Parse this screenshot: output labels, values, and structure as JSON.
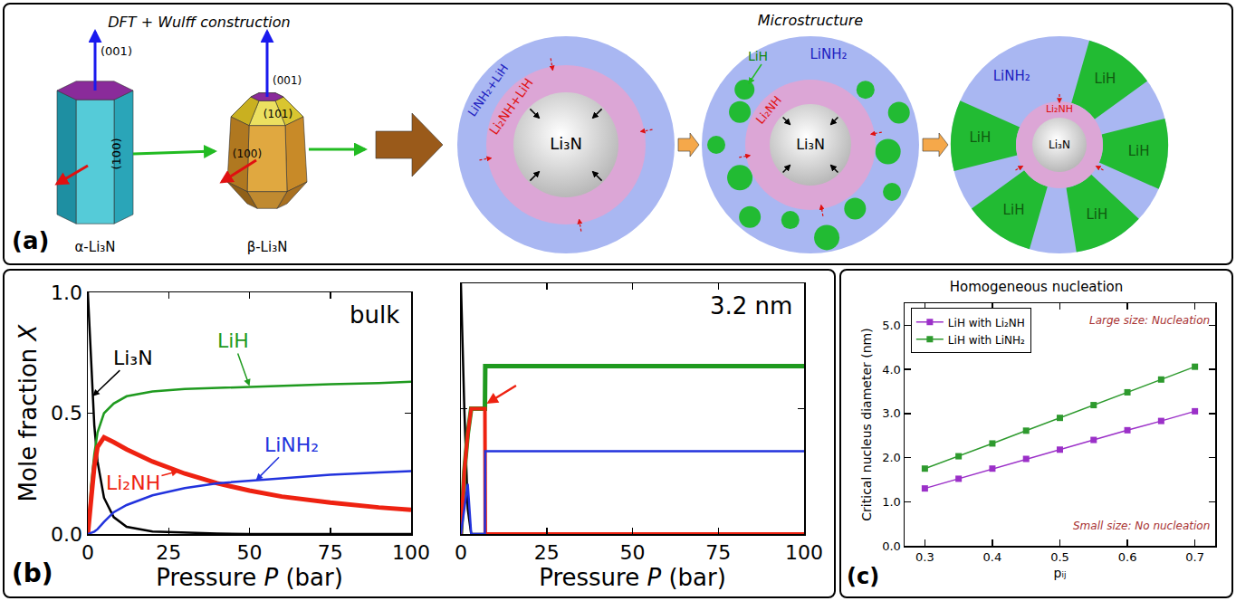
{
  "panel_labels": [
    "(a)",
    "(b)",
    "(c)"
  ],
  "diagram": {
    "wulff": {
      "title": "DFT + Wulff construction",
      "crystals": [
        {
          "name": "α-Li₃N",
          "facets": [
            "(001)",
            "(100)"
          ]
        },
        {
          "name": "β-Li₃N",
          "facets": [
            "(001)",
            "(101)",
            "(100)"
          ]
        }
      ]
    },
    "microstructure": {
      "title": "Microstructure",
      "stages": [
        {
          "core": "Li₃N",
          "middle": "Li₂NH+LiH",
          "shell": "LiNH₂+LiH"
        },
        {
          "core": "Li₃N",
          "middle": "Li₂NH",
          "shell": "LiNH₂",
          "particles": "LiH"
        },
        {
          "core": "Li₃N",
          "middle": "Li₂NH",
          "shell": "LiNH₂",
          "wedges": [
            "LiH",
            "LiH",
            "LiH",
            "LiH",
            "LiH"
          ]
        }
      ]
    }
  },
  "chart_data": [
    {
      "type": "line",
      "annotations": [
        "bulk"
      ],
      "x_label": "Pressure P (bar)",
      "y_label": "Mole fraction X",
      "xlim": [
        0,
        100
      ],
      "xticks": [
        0,
        25,
        50,
        75,
        100
      ],
      "ylim": [
        0,
        1
      ],
      "yticks": [
        {
          "value": 0,
          "label": "0.0"
        },
        {
          "value": 0.5,
          "label": "0.5"
        },
        {
          "value": 1,
          "label": "1.0"
        }
      ],
      "grid": false,
      "x": [
        0,
        1,
        2,
        3,
        5,
        8,
        12,
        20,
        30,
        40,
        50,
        60,
        75,
        90,
        100
      ],
      "series": [
        {
          "name": "Li₃N",
          "color": "#000000",
          "values": [
            1.0,
            0.7,
            0.45,
            0.3,
            0.15,
            0.07,
            0.03,
            0.01,
            0.005,
            0.002,
            0,
            0,
            0,
            0,
            0
          ]
        },
        {
          "name": "LiH",
          "color": "#1f9a1f",
          "values": [
            0,
            0.2,
            0.33,
            0.42,
            0.5,
            0.54,
            0.57,
            0.59,
            0.6,
            0.605,
            0.61,
            0.615,
            0.62,
            0.625,
            0.63
          ]
        },
        {
          "name": "Li₂NH",
          "color": "#ee2211",
          "values": [
            0,
            0.15,
            0.28,
            0.36,
            0.4,
            0.38,
            0.35,
            0.3,
            0.25,
            0.21,
            0.18,
            0.155,
            0.13,
            0.11,
            0.1
          ]
        },
        {
          "name": "LiNH₂",
          "color": "#2233dd",
          "values": [
            0,
            0.005,
            0.01,
            0.02,
            0.05,
            0.09,
            0.12,
            0.16,
            0.19,
            0.21,
            0.22,
            0.23,
            0.245,
            0.255,
            0.26
          ]
        }
      ]
    },
    {
      "type": "line",
      "annotations": [
        "3.2 nm"
      ],
      "x_label": "Pressure P (bar)",
      "xlim": [
        0,
        100
      ],
      "xticks": [
        0,
        25,
        50,
        75,
        100
      ],
      "ylim": [
        0,
        1
      ],
      "yticks": [
        0,
        0.5,
        1
      ],
      "tick_labels": "x",
      "grid": false,
      "x": [
        0,
        1,
        2,
        3,
        5,
        7,
        7.1,
        25,
        50,
        75,
        100
      ],
      "series": [
        {
          "color": "#000000",
          "values": [
            1.0,
            0.5,
            0.1,
            0,
            0,
            0,
            0,
            0,
            0,
            0,
            0
          ]
        },
        {
          "color": "#1f9a1f",
          "values": [
            0,
            0.25,
            0.4,
            0.5,
            0.5,
            0.5,
            0.67,
            0.67,
            0.67,
            0.67,
            0.67
          ]
        },
        {
          "color": "#ee2211",
          "values": [
            0,
            0.25,
            0.4,
            0.5,
            0.5,
            0.5,
            0,
            0,
            0,
            0,
            0
          ]
        },
        {
          "color": "#2233dd",
          "values": [
            0,
            0.1,
            0.2,
            0,
            0,
            0,
            0.33,
            0.33,
            0.33,
            0.33,
            0.33
          ]
        }
      ]
    },
    {
      "type": "line",
      "title": "Homogeneous nucleation",
      "annotations": [
        "Large size: Nucleation",
        "Small size: No nucleation"
      ],
      "x_label": "pᵢⱼ",
      "y_label": "Critical nucleus diameter (nm)",
      "xlim": [
        0.27,
        0.73
      ],
      "xticks": [
        0.3,
        0.4,
        0.5,
        0.6,
        0.7
      ],
      "ylim": [
        0,
        5.5
      ],
      "yticks": [
        {
          "value": 0,
          "label": "0.0"
        },
        {
          "value": 1,
          "label": "1.0"
        },
        {
          "value": 2,
          "label": "2.0"
        },
        {
          "value": 3,
          "label": "3.0"
        },
        {
          "value": 4,
          "label": "4.0"
        },
        {
          "value": 5,
          "label": "5.0"
        }
      ],
      "grid": false,
      "legend": "top left",
      "marker": "square",
      "x": [
        0.3,
        0.35,
        0.4,
        0.45,
        0.5,
        0.55,
        0.6,
        0.65,
        0.7
      ],
      "series": [
        {
          "name": "LiH with Li₂NH",
          "color": "#9b30c8",
          "values": [
            1.3,
            1.52,
            1.75,
            1.97,
            2.18,
            2.4,
            2.62,
            2.83,
            3.05
          ]
        },
        {
          "name": "LiH with LiNH₂",
          "color": "#2e9a2e",
          "values": [
            1.75,
            2.03,
            2.32,
            2.61,
            2.9,
            3.19,
            3.48,
            3.77,
            4.06
          ]
        }
      ]
    }
  ]
}
